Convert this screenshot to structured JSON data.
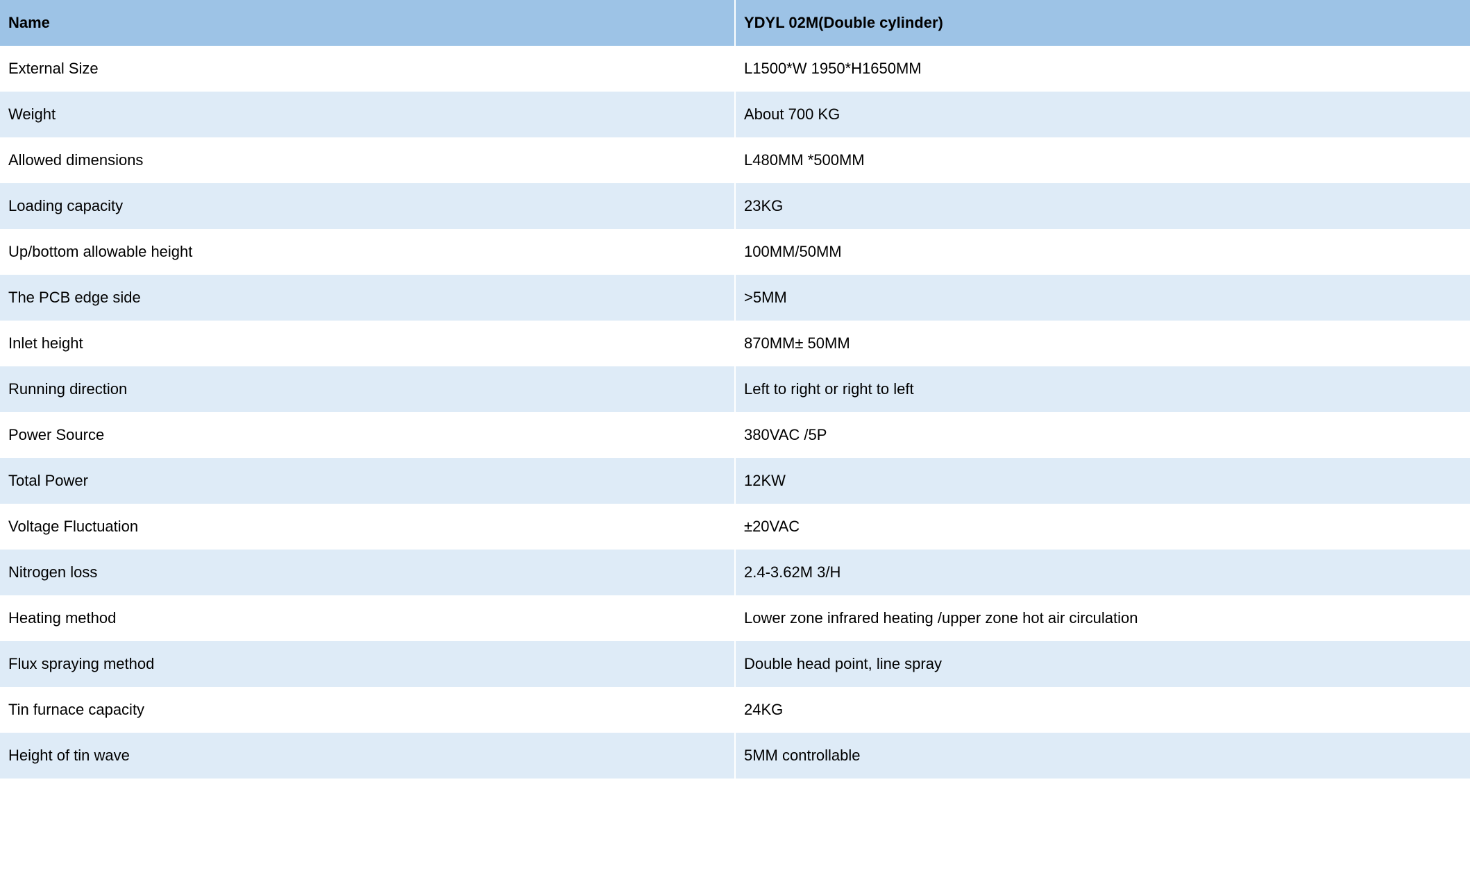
{
  "table": {
    "header_bg_color": "#9dc3e6",
    "row_odd_bg_color": "#ffffff",
    "row_even_bg_color": "#deebf7",
    "text_color": "#000000",
    "font_size": 22,
    "header_font_weight": "bold",
    "columns": [
      {
        "label": "Name",
        "width_percent": 50
      },
      {
        "label": "YDYL 02M(Double cylinder)",
        "width_percent": 50
      }
    ],
    "rows": [
      {
        "name": "External Size",
        "value": "L1500*W 1950*H1650MM"
      },
      {
        "name": "Weight",
        "value": "About 700 KG"
      },
      {
        "name": "Allowed dimensions",
        "value": "L480MM *500MM"
      },
      {
        "name": "Loading capacity",
        "value": "23KG"
      },
      {
        "name": "Up/bottom allowable height",
        "value": "100MM/50MM"
      },
      {
        "name": "The PCB edge side",
        "value": ">5MM"
      },
      {
        "name": "Inlet height",
        "value": "870MM± 50MM"
      },
      {
        "name": "Running direction",
        "value": "Left to right or right to left"
      },
      {
        "name": "Power Source",
        "value": "380VAC /5P"
      },
      {
        "name": "Total Power",
        "value": "12KW"
      },
      {
        "name": "Voltage Fluctuation",
        "value": "±20VAC"
      },
      {
        "name": "Nitrogen loss",
        "value": "2.4-3.62M 3/H"
      },
      {
        "name": "Heating method",
        "value": "Lower zone infrared heating /upper zone hot air circulation"
      },
      {
        "name": "Flux spraying method",
        "value": "Double head point, line spray"
      },
      {
        "name": "Tin furnace capacity",
        "value": "24KG"
      },
      {
        "name": "Height of tin wave",
        "value": "5MM controllable"
      }
    ]
  }
}
